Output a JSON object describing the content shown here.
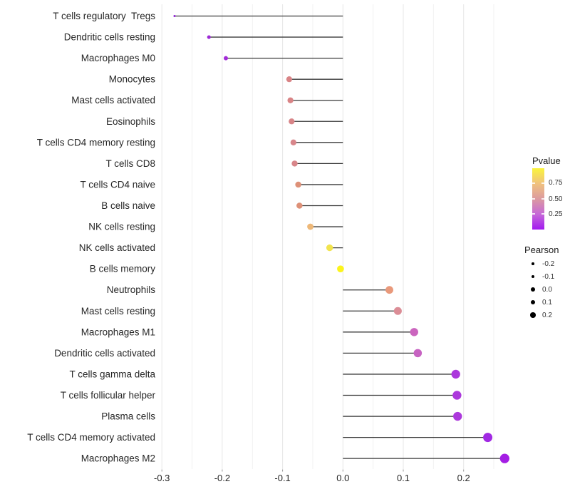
{
  "chart_data": {
    "type": "lollipop",
    "orientation": "horizontal",
    "title": "",
    "xlabel": "",
    "ylabel": "",
    "x_tick_labels": [
      "-0.3",
      "-0.2",
      "-0.1",
      "0.0",
      "0.1",
      "0.2"
    ],
    "x_tick_values": [
      -0.3,
      -0.2,
      -0.1,
      0.0,
      0.1,
      0.2
    ],
    "xlim": [
      -0.303,
      0.281
    ],
    "grid": "vertical gridlines every 0.05, no horizontal gridlines",
    "legend_position": "right",
    "points": [
      {
        "label": "T cells regulatory  Tregs",
        "pearson": -0.279,
        "color": "#9326D6"
      },
      {
        "label": "Dendritic cells resting",
        "pearson": -0.222,
        "color": "#9D2AD6"
      },
      {
        "label": "Macrophages M0",
        "pearson": -0.194,
        "color": "#A32BD8"
      },
      {
        "label": "Monocytes",
        "pearson": -0.089,
        "color": "#D98486"
      },
      {
        "label": "Mast cells activated",
        "pearson": -0.087,
        "color": "#D98486"
      },
      {
        "label": "Eosinophils",
        "pearson": -0.085,
        "color": "#D88588"
      },
      {
        "label": "T cells CD4 memory resting",
        "pearson": -0.082,
        "color": "#D8868B"
      },
      {
        "label": "T cells CD8",
        "pearson": -0.08,
        "color": "#D8868A"
      },
      {
        "label": "T cells CD4 naive",
        "pearson": -0.074,
        "color": "#DE9178"
      },
      {
        "label": "B cells naive",
        "pearson": -0.072,
        "color": "#DE9178"
      },
      {
        "label": "NK cells resting",
        "pearson": -0.054,
        "color": "#EEB878"
      },
      {
        "label": "NK cells activated",
        "pearson": -0.022,
        "color": "#F2E44E"
      },
      {
        "label": "B cells memory",
        "pearson": -0.004,
        "color": "#FCF41C"
      },
      {
        "label": "Neutrophils",
        "pearson": 0.077,
        "color": "#E9997B"
      },
      {
        "label": "Mast cells resting",
        "pearson": 0.091,
        "color": "#DB8D96"
      },
      {
        "label": "Macrophages M1",
        "pearson": 0.118,
        "color": "#CB65BE"
      },
      {
        "label": "Dendritic cells activated",
        "pearson": 0.124,
        "color": "#C763C2"
      },
      {
        "label": "T cells gamma delta",
        "pearson": 0.187,
        "color": "#AC38DC"
      },
      {
        "label": "T cells follicular helper",
        "pearson": 0.189,
        "color": "#AC38DC"
      },
      {
        "label": "Plasma cells",
        "pearson": 0.19,
        "color": "#AC38DC"
      },
      {
        "label": "T cells CD4 memory activated",
        "pearson": 0.24,
        "color": "#A129E3"
      },
      {
        "label": "Macrophages M2",
        "pearson": 0.268,
        "color": "#A41EE4"
      }
    ],
    "legend_pvalue": {
      "title": "Pvalue",
      "tick_labels": [
        "0.75",
        "0.50",
        "0.25"
      ],
      "tick_positions_pct": [
        24.4,
        50,
        74.6
      ],
      "gradient_bottom_to_top": [
        "#A21AF0",
        "#C669D8",
        "#DC9AA0",
        "#F0C27E",
        "#FAF43C"
      ]
    },
    "legend_pearson": {
      "title": "Pearson",
      "labels": [
        "-0.2",
        "-0.1",
        "0.0",
        "0.1",
        "0.2"
      ],
      "values": [
        -0.2,
        -0.1,
        0.0,
        0.1,
        0.2
      ]
    },
    "colors": {
      "background": "#FFFFFF",
      "grid_major": "#E7E7E7",
      "grid_minor": "#F1F1F1",
      "stem": "#3A3A3A",
      "axis_text": "#262626",
      "tick_mark": "#999999"
    }
  }
}
